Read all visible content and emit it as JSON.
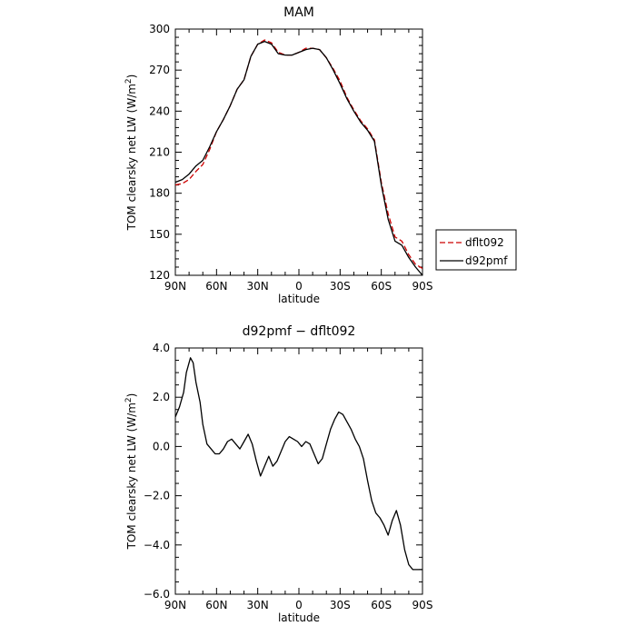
{
  "chart_data": [
    {
      "type": "line",
      "title": "MAM",
      "xlabel": "latitude",
      "ylabel": "TOM clearsky net LW (W/m",
      "ylabel_sup": "2",
      "ylabel_close": ")",
      "xlim": [
        -90,
        90
      ],
      "ylim": [
        120,
        300
      ],
      "x_ticks": [
        {
          "value": -90,
          "label": "90N"
        },
        {
          "value": -60,
          "label": "60N"
        },
        {
          "value": -30,
          "label": "30N"
        },
        {
          "value": 0,
          "label": "0"
        },
        {
          "value": 30,
          "label": "30S"
        },
        {
          "value": 60,
          "label": "60S"
        },
        {
          "value": 90,
          "label": "90S"
        }
      ],
      "y_ticks": [
        {
          "value": 120,
          "label": "120"
        },
        {
          "value": 150,
          "label": "150"
        },
        {
          "value": 180,
          "label": "180"
        },
        {
          "value": 210,
          "label": "210"
        },
        {
          "value": 240,
          "label": "240"
        },
        {
          "value": 270,
          "label": "270"
        },
        {
          "value": 300,
          "label": "300"
        }
      ],
      "legend_position": "right",
      "series": [
        {
          "name": "dflt092",
          "color": "#cc0000",
          "dash": "dashed",
          "x": [
            -90,
            -85,
            -80,
            -75,
            -70,
            -65,
            -60,
            -55,
            -50,
            -45,
            -40,
            -35,
            -30,
            -25,
            -20,
            -15,
            -10,
            -5,
            0,
            5,
            10,
            15,
            20,
            25,
            30,
            35,
            40,
            45,
            50,
            55,
            60,
            65,
            70,
            75,
            80,
            85,
            90
          ],
          "y": [
            186,
            187,
            190,
            196,
            201,
            212,
            225,
            234,
            244,
            256,
            263,
            280,
            289,
            292,
            290,
            283,
            281,
            281,
            283,
            286,
            286,
            285,
            279,
            271,
            262,
            250,
            241,
            233,
            227,
            219,
            188,
            165,
            148,
            145,
            135,
            128,
            125
          ]
        },
        {
          "name": "d92pmf",
          "color": "#000000",
          "dash": "solid",
          "x": [
            -90,
            -85,
            -80,
            -75,
            -70,
            -65,
            -60,
            -55,
            -50,
            -45,
            -40,
            -35,
            -30,
            -25,
            -20,
            -15,
            -10,
            -5,
            0,
            5,
            10,
            15,
            20,
            25,
            30,
            35,
            40,
            45,
            50,
            55,
            60,
            65,
            70,
            75,
            80,
            85,
            90
          ],
          "y": [
            188,
            190,
            194,
            200,
            204,
            214,
            225,
            234,
            244,
            256,
            263,
            280,
            289,
            291,
            289,
            282,
            281,
            281,
            283,
            285,
            286,
            285,
            279,
            270,
            260,
            249,
            240,
            232,
            226,
            218,
            186,
            161,
            145,
            142,
            133,
            126,
            120
          ]
        }
      ]
    },
    {
      "type": "line",
      "title": "d92pmf − dflt092",
      "xlabel": "latitude",
      "ylabel": "TOM clearsky net LW (W/m",
      "ylabel_sup": "2",
      "ylabel_close": ")",
      "xlim": [
        -90,
        90
      ],
      "ylim": [
        -6,
        4
      ],
      "x_ticks": [
        {
          "value": -90,
          "label": "90N"
        },
        {
          "value": -60,
          "label": "60N"
        },
        {
          "value": -30,
          "label": "30N"
        },
        {
          "value": 0,
          "label": "0"
        },
        {
          "value": 30,
          "label": "30S"
        },
        {
          "value": 60,
          "label": "60S"
        },
        {
          "value": 90,
          "label": "90S"
        }
      ],
      "y_ticks": [
        {
          "value": -6,
          "label": "−6.0"
        },
        {
          "value": -4,
          "label": "−4.0"
        },
        {
          "value": -2,
          "label": "−2.0"
        },
        {
          "value": 0,
          "label": "0.0"
        },
        {
          "value": 2,
          "label": "2.0"
        },
        {
          "value": 4,
          "label": "4.0"
        }
      ],
      "series": [
        {
          "color": "#000000",
          "dash": "solid",
          "x": [
            -90,
            -87,
            -84,
            -82,
            -79,
            -77,
            -75,
            -72,
            -70,
            -67,
            -64,
            -61,
            -58,
            -55,
            -52,
            -49,
            -46,
            -43,
            -40,
            -37,
            -34,
            -31,
            -28,
            -25,
            -22,
            -19,
            -16,
            -13,
            -10,
            -7,
            -4,
            -1,
            2,
            5,
            8,
            11,
            14,
            17,
            20,
            23,
            26,
            29,
            32,
            35,
            38,
            41,
            44,
            47,
            50,
            53,
            56,
            59,
            62,
            65,
            68,
            71,
            74,
            77,
            80,
            83,
            86,
            88,
            90
          ],
          "y": [
            1.2,
            1.6,
            2.2,
            3.0,
            3.6,
            3.4,
            2.6,
            1.8,
            0.9,
            0.1,
            -0.1,
            -0.3,
            -0.3,
            -0.1,
            0.2,
            0.3,
            0.1,
            -0.1,
            0.2,
            0.5,
            0.1,
            -0.6,
            -1.2,
            -0.8,
            -0.4,
            -0.8,
            -0.6,
            -0.2,
            0.2,
            0.4,
            0.3,
            0.2,
            0.0,
            0.2,
            0.1,
            -0.3,
            -0.7,
            -0.5,
            0.1,
            0.7,
            1.1,
            1.4,
            1.3,
            1.0,
            0.7,
            0.3,
            0.0,
            -0.5,
            -1.4,
            -2.2,
            -2.7,
            -2.9,
            -3.2,
            -3.6,
            -3.0,
            -2.6,
            -3.2,
            -4.2,
            -4.8,
            -5.0,
            -5.0,
            -5.0,
            -5.0
          ]
        }
      ]
    }
  ]
}
